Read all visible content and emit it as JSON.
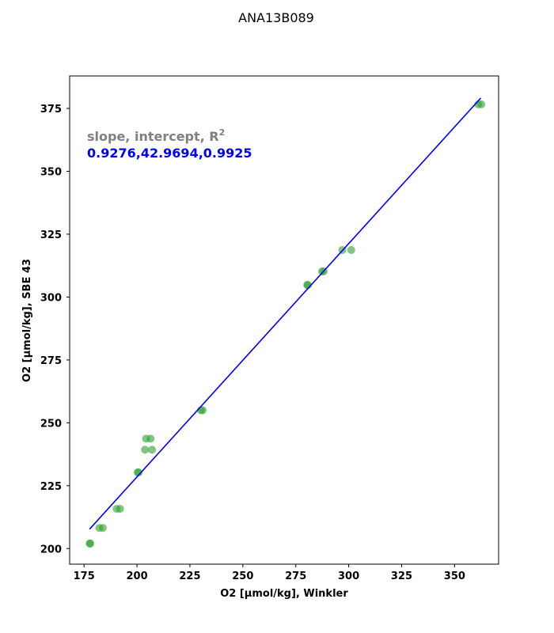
{
  "chart_data": {
    "type": "scatter",
    "title": "ANA13B089",
    "xlabel": "O2 [μmol/kg], Winkler",
    "ylabel": "O2 [μmol/kg], SBE 43",
    "xlim": [
      168.2,
      370.8
    ],
    "ylim": [
      193.8,
      387.9
    ],
    "xticks": [
      175,
      200,
      225,
      250,
      275,
      300,
      325,
      350
    ],
    "yticks": [
      200,
      225,
      250,
      275,
      300,
      325,
      350,
      375
    ],
    "grid": false,
    "annotation": {
      "header": "slope, intercept, R",
      "header_sup": "2",
      "values": "0.9276,42.9694,0.9925"
    },
    "fit_line": {
      "slope": 0.9276,
      "intercept": 42.9694,
      "x_range": [
        177.6,
        362.4
      ],
      "color": "#0000ff"
    },
    "point_color": "#2ca02c",
    "points": [
      {
        "x": 177.7,
        "y": 202.0
      },
      {
        "x": 177.9,
        "y": 202.0
      },
      {
        "x": 182.2,
        "y": 208.2
      },
      {
        "x": 183.9,
        "y": 208.2
      },
      {
        "x": 190.4,
        "y": 215.8
      },
      {
        "x": 192.0,
        "y": 215.8
      },
      {
        "x": 200.3,
        "y": 230.3
      },
      {
        "x": 200.8,
        "y": 230.3
      },
      {
        "x": 203.8,
        "y": 239.3
      },
      {
        "x": 207.1,
        "y": 239.3
      },
      {
        "x": 204.3,
        "y": 243.7
      },
      {
        "x": 206.4,
        "y": 243.7
      },
      {
        "x": 230.2,
        "y": 255.0
      },
      {
        "x": 231.0,
        "y": 255.0
      },
      {
        "x": 280.4,
        "y": 304.8
      },
      {
        "x": 280.7,
        "y": 304.8
      },
      {
        "x": 287.4,
        "y": 310.2
      },
      {
        "x": 288.2,
        "y": 310.2
      },
      {
        "x": 297.0,
        "y": 318.7
      },
      {
        "x": 301.2,
        "y": 318.7
      },
      {
        "x": 361.2,
        "y": 376.6
      },
      {
        "x": 362.6,
        "y": 376.6
      }
    ]
  }
}
